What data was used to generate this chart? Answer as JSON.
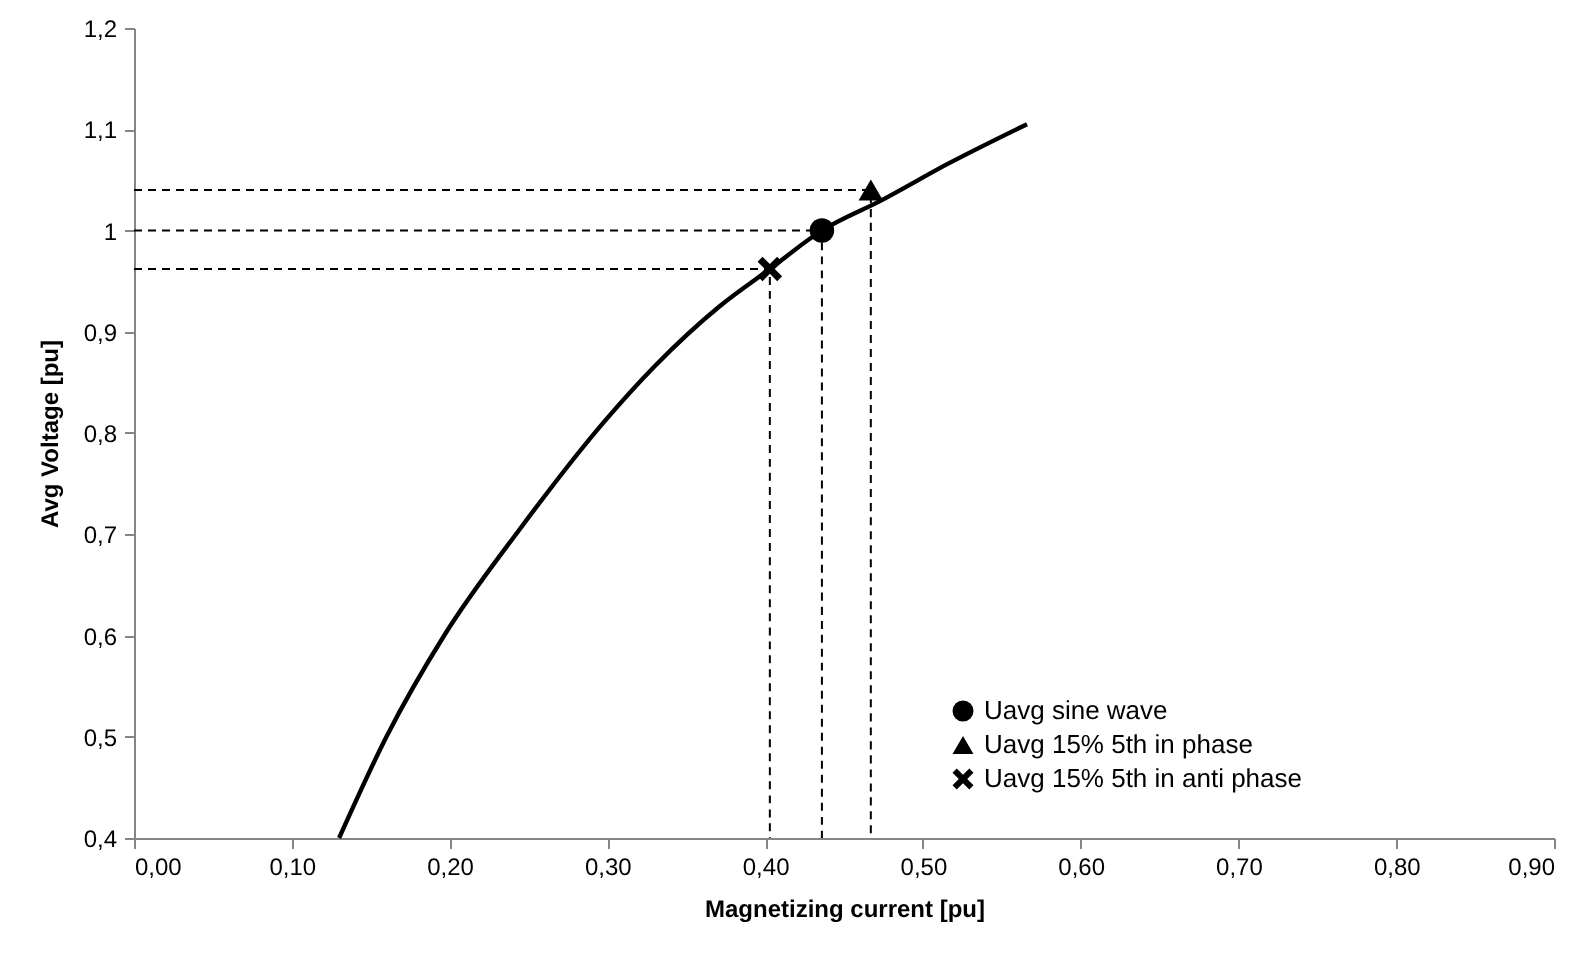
{
  "chart_data": {
    "type": "line",
    "xlabel": "Magnetizing current [pu]",
    "ylabel": "Avg Voltage [pu]",
    "xlim": [
      0,
      0.9
    ],
    "ylim": [
      0.4,
      1.2
    ],
    "xticks": [
      {
        "value": 0,
        "label": "0,00"
      },
      {
        "value": 0.1,
        "label": "0,10"
      },
      {
        "value": 0.2,
        "label": "0,20"
      },
      {
        "value": 0.3,
        "label": "0,30"
      },
      {
        "value": 0.4,
        "label": "0,40"
      },
      {
        "value": 0.5,
        "label": "0,50"
      },
      {
        "value": 0.6,
        "label": "0,60"
      },
      {
        "value": 0.7,
        "label": "0,70"
      },
      {
        "value": 0.8,
        "label": "0,80"
      },
      {
        "value": 0.9,
        "label": "0,90"
      }
    ],
    "yticks": [
      {
        "value": 0.4,
        "label": "0,4"
      },
      {
        "value": 0.5,
        "label": "0,5"
      },
      {
        "value": 0.6,
        "label": "0,6"
      },
      {
        "value": 0.7,
        "label": "0,7"
      },
      {
        "value": 0.8,
        "label": "0,8"
      },
      {
        "value": 0.9,
        "label": "0,9"
      },
      1,
      {
        "value": 1.1,
        "label": "1,1"
      },
      {
        "value": 1.2,
        "label": "1,2"
      }
    ],
    "grid": false,
    "legend": "right",
    "series": [
      {
        "color": "#000000",
        "line_style": "solid",
        "x": [
          0.13,
          0.16,
          0.197,
          0.244,
          0.299,
          0.33,
          0.371,
          0.403,
          0.436,
          0.474,
          0.516,
          0.566
        ],
        "values": [
          0.4,
          0.5,
          0.601,
          0.704,
          0.813,
          0.866,
          0.925,
          0.962,
          1.0,
          1.03,
          1.066,
          1.105
        ]
      },
      {
        "color": "#000000",
        "line_style": "dashed",
        "x": [
          0,
          0.436,
          0.436
        ],
        "values": [
          1.0,
          1.0,
          0.4
        ]
      },
      {
        "color": "#000000",
        "line_style": "dashed",
        "x": [
          0,
          0.467,
          0.467
        ],
        "values": [
          1.04,
          1.04,
          0.4
        ]
      },
      {
        "color": "#000000",
        "line_style": "dashed",
        "x": [
          0,
          0.403,
          0.403
        ],
        "values": [
          0.962,
          0.962,
          0.4
        ]
      },
      {
        "type": "scatter",
        "name": "Uavg sine wave",
        "color": "#000000",
        "marker": "circle",
        "x": [
          0.436
        ],
        "values": [
          1.0
        ]
      },
      {
        "type": "scatter",
        "name": "Uavg 15% 5th in phase",
        "color": "#000000",
        "marker": "triangle",
        "x": [
          0.467
        ],
        "values": [
          1.04
        ]
      },
      {
        "type": "scatter",
        "name": "Uavg 15% 5th in anti phase",
        "color": "#000000",
        "marker": "cross",
        "x": [
          0.403
        ],
        "values": [
          0.962
        ]
      }
    ]
  }
}
